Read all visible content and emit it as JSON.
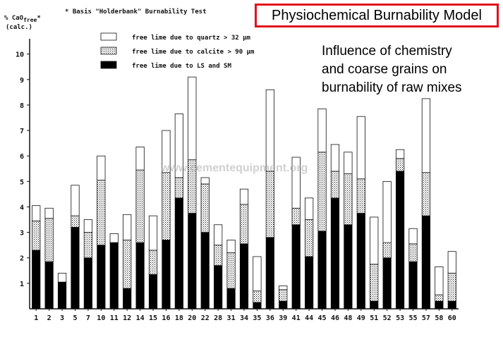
{
  "header": {
    "axis_unit_line1": "% CaO",
    "axis_unit_sub": "free",
    "axis_unit_star": "*",
    "axis_unit_line2": "(calc.)",
    "footnote": "* Basis \"Holderbank\" Burnability Test"
  },
  "title": "Physiochemical Burnability Model",
  "subtitle_lines": [
    "Influence of chemistry",
    "and coarse grains on",
    "burnability of raw mixes"
  ],
  "watermark": "www.cementequipment.org",
  "chart_data": {
    "type": "bar",
    "stacked": true,
    "categories": [
      "1",
      "2",
      "3",
      "5",
      "7",
      "10",
      "11",
      "12",
      "14",
      "15",
      "16",
      "18",
      "20",
      "22",
      "28",
      "31",
      "34",
      "35",
      "36",
      "39",
      "41",
      "44",
      "45",
      "46",
      "48",
      "49",
      "51",
      "52",
      "53",
      "55",
      "57",
      "58",
      "60"
    ],
    "series": [
      {
        "name": "free lime due to LS and SM",
        "pattern": "solid-black",
        "values": [
          2.3,
          1.85,
          1.05,
          3.2,
          2.0,
          2.5,
          2.6,
          0.8,
          2.6,
          1.35,
          2.7,
          4.35,
          3.75,
          3.0,
          1.7,
          0.8,
          2.55,
          0.25,
          2.8,
          0.3,
          3.3,
          2.05,
          3.05,
          4.35,
          3.3,
          3.75,
          0.3,
          2.0,
          5.4,
          1.85,
          3.65,
          0.3,
          0.3
        ]
      },
      {
        "name": "free lime due to calcite > 90 µm",
        "pattern": "dotted",
        "values": [
          1.15,
          1.7,
          0.0,
          0.45,
          1.0,
          2.55,
          0.0,
          1.9,
          2.85,
          0.95,
          2.65,
          0.8,
          2.1,
          1.9,
          0.8,
          1.4,
          1.55,
          0.45,
          2.6,
          0.45,
          0.65,
          1.45,
          3.1,
          1.05,
          2.0,
          1.35,
          1.45,
          0.6,
          0.5,
          0.7,
          1.7,
          0.25,
          1.1
        ]
      },
      {
        "name": "free lime due to quartz > 32 µm",
        "pattern": "white",
        "values": [
          0.6,
          0.4,
          0.35,
          1.2,
          0.5,
          0.95,
          0.35,
          1.0,
          0.9,
          1.35,
          1.65,
          2.5,
          3.25,
          0.25,
          0.8,
          0.5,
          0.6,
          1.35,
          3.2,
          0.15,
          2.0,
          0.85,
          1.7,
          1.05,
          0.85,
          2.45,
          1.85,
          2.4,
          0.35,
          0.6,
          2.9,
          1.1,
          0.85
        ]
      }
    ],
    "xlabel": "",
    "ylabel": "% CaO free* (calc.)",
    "ylim": [
      0,
      10.6
    ],
    "yticks": [
      "1",
      "2",
      "3",
      "4",
      "5",
      "6",
      "7",
      "8",
      "9",
      "10"
    ],
    "grid": false,
    "legend_position": "top-left"
  }
}
